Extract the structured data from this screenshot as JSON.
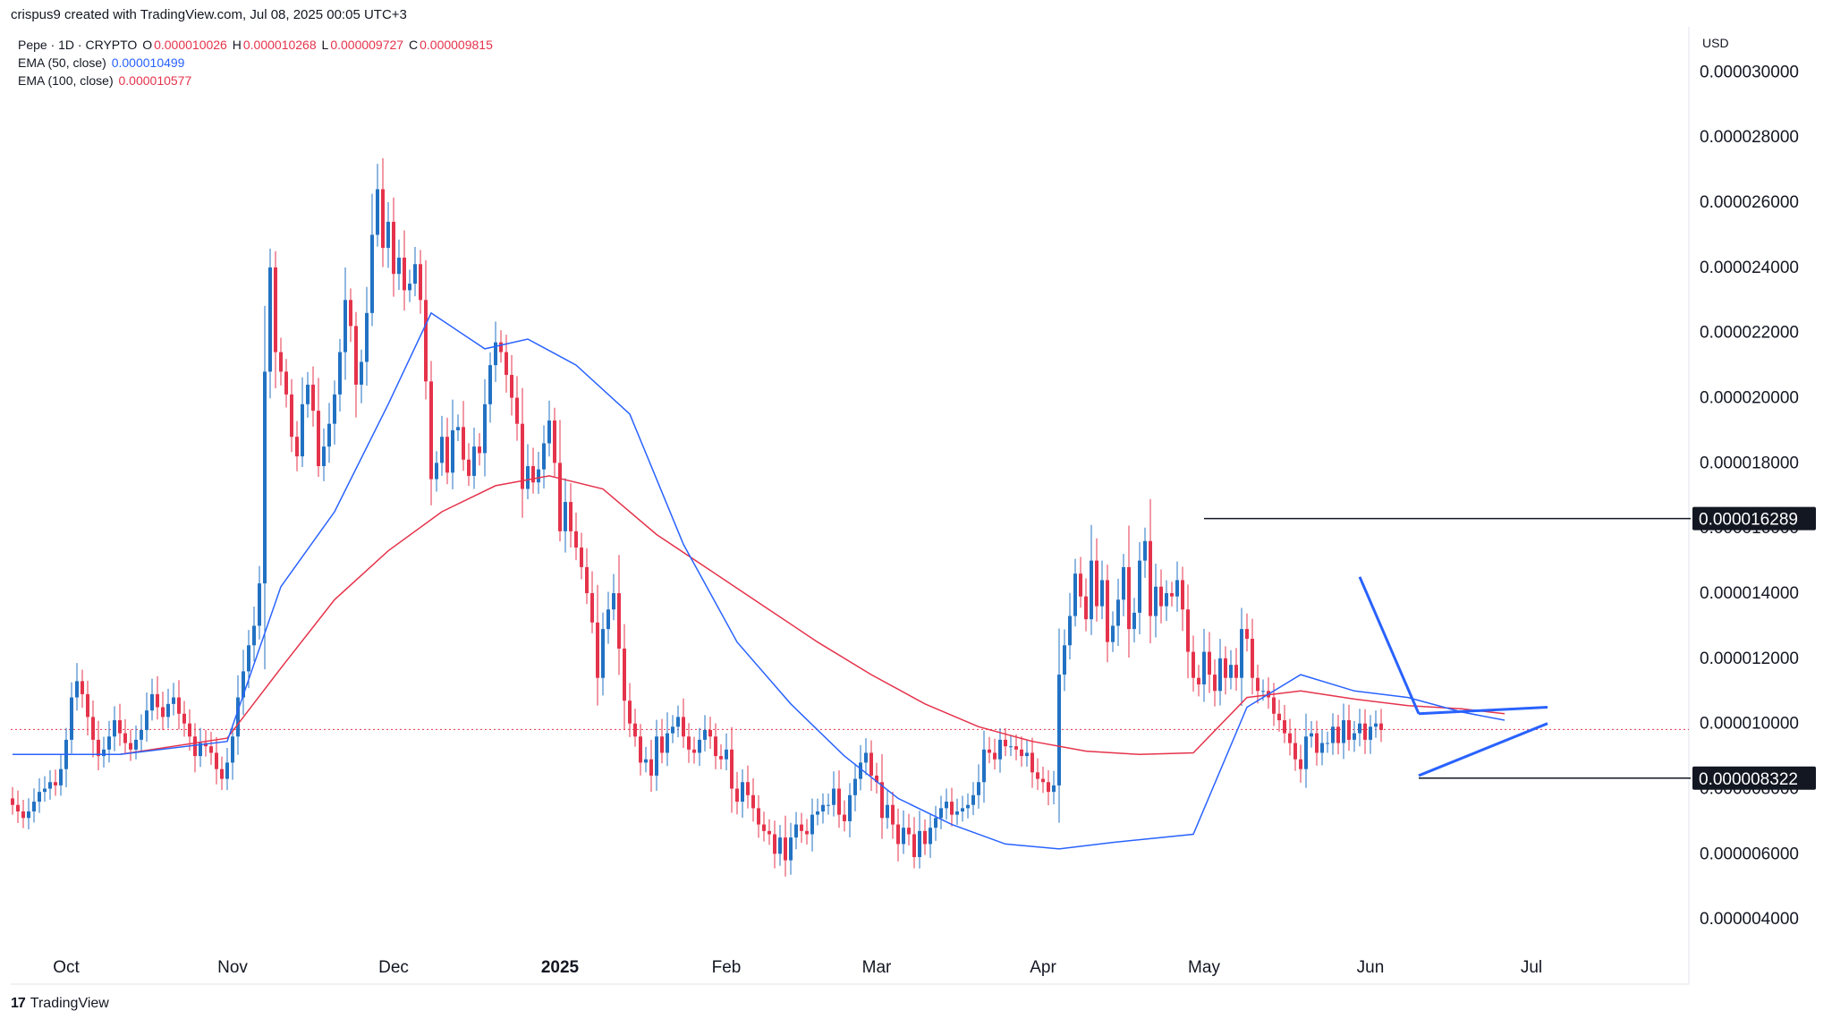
{
  "caption": "crispus9 created with TradingView.com, Jul 08, 2025 00:05 UTC+3",
  "legend": {
    "symbol": "Pepe · 1D · CRYPTO",
    "o_label": "O",
    "o_value": "0.000010026",
    "h_label": "H",
    "h_value": "0.000010268",
    "l_label": "L",
    "l_value": "0.000009727",
    "c_label": "C",
    "c_value": "0.000009815",
    "ema50_label": "EMA (50, close)",
    "ema50_value": "0.000010499",
    "ema100_label": "EMA (100, close)",
    "ema100_value": "0.000010577"
  },
  "currency": "USD",
  "footer": {
    "brand": "TradingView",
    "logo_glyph": "17"
  },
  "colors": {
    "up": "#2272c3",
    "down": "#e5334b",
    "ema50": "#2962ff",
    "ema100": "#e5334b",
    "grid": "#f0f3fa",
    "lines": "#131722"
  },
  "chart_data": {
    "type": "candlestick",
    "y_axis": {
      "ticks": [
        "0.000004000",
        "0.000006000",
        "0.000008000",
        "0.000010000",
        "0.000012000",
        "0.000014000",
        "0.000016000",
        "0.000018000",
        "0.000020000",
        "0.000022000",
        "0.000024000",
        "0.000026000",
        "0.000028000",
        "0.000030000"
      ],
      "tick_values": [
        4,
        6,
        8,
        10,
        12,
        14,
        16,
        18,
        20,
        22,
        24,
        26,
        28,
        30
      ],
      "scale": "1e-6 USD",
      "range": [
        2.0,
        31.0
      ]
    },
    "x_axis": {
      "labels": [
        "Oct",
        "Nov",
        "Dec",
        "2025",
        "Feb",
        "Mar",
        "Apr",
        "May",
        "Jun",
        "Jul"
      ],
      "label_days": [
        10,
        41,
        71,
        102,
        133,
        161,
        192,
        222,
        253,
        283
      ]
    },
    "horizontal_levels": [
      {
        "value": 16.289,
        "label": "0.000016289"
      },
      {
        "value": 8.322,
        "label": "0.000008322"
      }
    ],
    "current_price": 9.815,
    "closes": [
      7.5,
      7.3,
      7.1,
      7.3,
      7.6,
      7.9,
      8.0,
      8.2,
      8.1,
      8.6,
      9.5,
      10.8,
      11.3,
      10.9,
      10.2,
      9.5,
      9.0,
      9.2,
      9.6,
      10.1,
      9.7,
      9.4,
      9.2,
      9.5,
      9.8,
      10.4,
      10.9,
      10.5,
      10.2,
      10.6,
      10.8,
      10.3,
      10.0,
      9.6,
      9.0,
      9.4,
      9.3,
      9.1,
      8.6,
      8.3,
      8.8,
      9.6,
      10.8,
      11.6,
      12.4,
      13.0,
      14.3,
      20.8,
      24.0,
      21.4,
      20.8,
      20.1,
      18.8,
      18.2,
      19.8,
      20.4,
      19.6,
      17.9,
      18.5,
      19.2,
      20.1,
      21.4,
      23.0,
      22.2,
      20.4,
      21.1,
      22.6,
      25.0,
      26.4,
      24.6,
      25.4,
      23.8,
      24.3,
      23.3,
      23.5,
      24.1,
      23.0,
      20.5,
      17.5,
      18.0,
      18.8,
      17.7,
      19.0,
      19.1,
      18.1,
      17.6,
      18.5,
      18.3,
      19.8,
      21.0,
      21.7,
      21.4,
      20.7,
      20.0,
      19.2,
      17.2,
      17.9,
      17.4,
      17.8,
      18.6,
      19.3,
      18.0,
      15.9,
      16.8,
      15.9,
      15.4,
      14.8,
      14.0,
      13.1,
      11.4,
      12.9,
      13.5,
      14.0,
      12.3,
      10.7,
      10.0,
      9.6,
      8.8,
      8.9,
      8.4,
      9.6,
      9.1,
      9.7,
      9.9,
      10.2,
      9.6,
      9.2,
      9.1,
      9.5,
      9.8,
      9.6,
      9.0,
      8.9,
      9.2,
      8.0,
      7.6,
      8.2,
      7.8,
      7.4,
      6.9,
      6.7,
      6.6,
      6.0,
      6.5,
      5.8,
      6.5,
      6.9,
      6.7,
      6.6,
      7.2,
      7.3,
      7.5,
      7.5,
      8.0,
      7.2,
      7.0,
      7.8,
      8.3,
      8.8,
      9.1,
      8.4,
      8.2,
      7.1,
      7.5,
      6.9,
      6.3,
      6.8,
      6.6,
      5.9,
      6.7,
      6.3,
      6.8,
      7.1,
      7.4,
      7.6,
      7.2,
      7.3,
      7.4,
      7.5,
      7.8,
      8.2,
      9.2,
      9.1,
      8.9,
      9.5,
      9.3,
      9.3,
      9.2,
      9.0,
      9.1,
      8.5,
      8.3,
      8.2,
      7.9,
      8.1,
      11.5,
      12.4,
      13.3,
      14.6,
      13.9,
      13.2,
      15.0,
      13.6,
      14.4,
      12.5,
      13.0,
      13.8,
      14.8,
      12.9,
      13.4,
      15.0,
      15.6,
      13.3,
      14.2,
      13.6,
      14.0,
      13.9,
      14.4,
      13.5,
      12.2,
      11.4,
      11.2,
      12.2,
      11.5,
      11.0,
      12.0,
      11.4,
      11.8,
      11.4,
      12.9,
      12.6,
      11.4,
      11.0,
      11.0,
      10.8,
      10.3,
      10.1,
      9.7,
      9.4,
      8.9,
      8.6,
      9.6,
      9.7,
      9.1,
      9.4,
      9.4,
      9.9,
      9.4,
      10.1,
      9.5,
      9.7,
      10.0,
      9.5,
      9.9,
      10.0,
      9.8
    ],
    "ema50": [
      [
        0,
        9.05
      ],
      [
        20,
        9.05
      ],
      [
        40,
        9.45
      ],
      [
        50,
        14.2
      ],
      [
        60,
        16.5
      ],
      [
        70,
        19.8
      ],
      [
        78,
        22.6
      ],
      [
        88,
        21.5
      ],
      [
        96,
        21.8
      ],
      [
        105,
        21.0
      ],
      [
        115,
        19.5
      ],
      [
        125,
        15.5
      ],
      [
        135,
        12.5
      ],
      [
        145,
        10.6
      ],
      [
        155,
        9.0
      ],
      [
        165,
        7.7
      ],
      [
        175,
        6.9
      ],
      [
        185,
        6.3
      ],
      [
        195,
        6.15
      ],
      [
        205,
        6.35
      ],
      [
        220,
        6.6
      ],
      [
        230,
        10.5
      ],
      [
        240,
        11.5
      ],
      [
        250,
        11.0
      ],
      [
        260,
        10.8
      ],
      [
        270,
        10.35
      ],
      [
        278,
        10.1
      ]
    ],
    "ema100": [
      [
        0,
        9.05
      ],
      [
        20,
        9.05
      ],
      [
        40,
        9.55
      ],
      [
        50,
        11.7
      ],
      [
        60,
        13.8
      ],
      [
        70,
        15.3
      ],
      [
        80,
        16.5
      ],
      [
        90,
        17.3
      ],
      [
        100,
        17.6
      ],
      [
        110,
        17.2
      ],
      [
        120,
        15.8
      ],
      [
        130,
        14.7
      ],
      [
        140,
        13.6
      ],
      [
        150,
        12.5
      ],
      [
        160,
        11.5
      ],
      [
        170,
        10.6
      ],
      [
        180,
        9.9
      ],
      [
        190,
        9.45
      ],
      [
        200,
        9.15
      ],
      [
        210,
        9.05
      ],
      [
        220,
        9.1
      ],
      [
        230,
        10.8
      ],
      [
        240,
        11.0
      ],
      [
        250,
        10.75
      ],
      [
        260,
        10.55
      ],
      [
        270,
        10.45
      ],
      [
        278,
        10.3
      ]
    ],
    "trendlines": [
      {
        "from": [
          251,
          14.5
        ],
        "to": [
          262,
          10.3
        ]
      },
      {
        "from": [
          262,
          10.3
        ],
        "to": [
          286,
          10.5
        ]
      },
      {
        "from": [
          262,
          8.4
        ],
        "to": [
          286,
          10.0
        ]
      }
    ]
  }
}
